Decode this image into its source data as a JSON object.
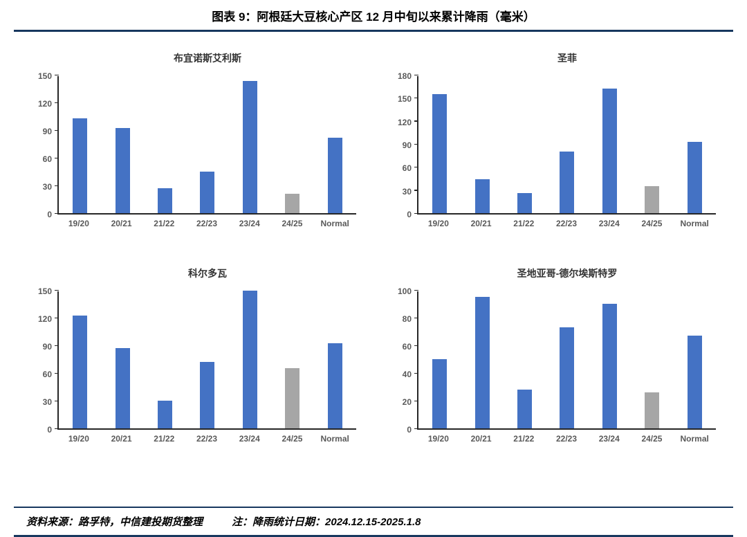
{
  "header": {
    "title": "图表 9：阿根廷大豆核心产区 12 月中旬以来累计降雨（毫米）"
  },
  "footer": {
    "source": "资料来源：路孚特，中信建投期货整理",
    "note": "注：降雨统计日期：2024.12.15-2025.1.8"
  },
  "colors": {
    "bar_blue": "#4472C4",
    "bar_gray": "#A6A6A6",
    "rule": "#17375E",
    "axis": "#262626",
    "label": "#595959"
  },
  "chart_data": [
    {
      "type": "bar",
      "title": "布宜诺斯艾利斯",
      "categories": [
        "19/20",
        "20/21",
        "21/22",
        "22/23",
        "23/24",
        "24/25",
        "Normal"
      ],
      "values": [
        103,
        92,
        27,
        45,
        143,
        21,
        82
      ],
      "bar_colors": [
        "blue",
        "blue",
        "blue",
        "blue",
        "blue",
        "gray",
        "blue"
      ],
      "ylim": [
        0,
        150
      ],
      "ytick_step": 30,
      "grid": false,
      "legend": false
    },
    {
      "type": "bar",
      "title": "圣菲",
      "categories": [
        "19/20",
        "20/21",
        "21/22",
        "22/23",
        "23/24",
        "24/25",
        "Normal"
      ],
      "values": [
        155,
        44,
        26,
        80,
        162,
        35,
        93
      ],
      "bar_colors": [
        "blue",
        "blue",
        "blue",
        "blue",
        "blue",
        "gray",
        "blue"
      ],
      "ylim": [
        0,
        180
      ],
      "ytick_step": 30,
      "grid": false,
      "legend": false
    },
    {
      "type": "bar",
      "title": "科尔多瓦",
      "categories": [
        "19/20",
        "20/21",
        "21/22",
        "22/23",
        "23/24",
        "24/25",
        "Normal"
      ],
      "values": [
        122,
        87,
        30,
        72,
        149,
        65,
        92
      ],
      "bar_colors": [
        "blue",
        "blue",
        "blue",
        "blue",
        "blue",
        "gray",
        "blue"
      ],
      "ylim": [
        0,
        150
      ],
      "ytick_step": 30,
      "grid": false,
      "legend": false
    },
    {
      "type": "bar",
      "title": "圣地亚哥-德尔埃斯特罗",
      "categories": [
        "19/20",
        "20/21",
        "21/22",
        "22/23",
        "23/24",
        "24/25",
        "Normal"
      ],
      "values": [
        50,
        95,
        28,
        73,
        90,
        26,
        67
      ],
      "bar_colors": [
        "blue",
        "blue",
        "blue",
        "blue",
        "blue",
        "gray",
        "blue"
      ],
      "ylim": [
        0,
        100
      ],
      "ytick_step": 20,
      "grid": false,
      "legend": false
    }
  ]
}
